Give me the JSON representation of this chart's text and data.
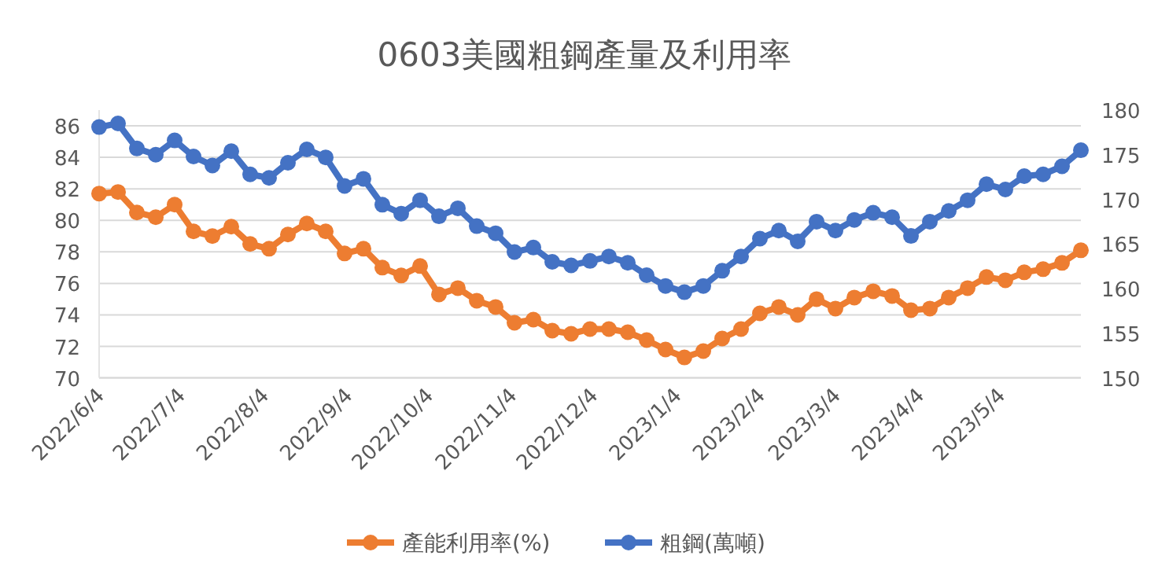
{
  "chart_data": {
    "type": "line",
    "title": "0603美國粗鋼產量及利用率",
    "x": [
      "2022-06-04",
      "2022-06-11",
      "2022-06-18",
      "2022-06-25",
      "2022-07-02",
      "2022-07-09",
      "2022-07-16",
      "2022-07-23",
      "2022-07-30",
      "2022-08-06",
      "2022-08-13",
      "2022-08-20",
      "2022-08-27",
      "2022-09-03",
      "2022-09-10",
      "2022-09-17",
      "2022-09-24",
      "2022-10-01",
      "2022-10-08",
      "2022-10-15",
      "2022-10-22",
      "2022-10-29",
      "2022-11-05",
      "2022-11-12",
      "2022-11-19",
      "2022-11-26",
      "2022-12-03",
      "2022-12-10",
      "2022-12-17",
      "2022-12-24",
      "2022-12-31",
      "2023-01-07",
      "2023-01-14",
      "2023-01-21",
      "2023-01-28",
      "2023-02-04",
      "2023-02-11",
      "2023-02-18",
      "2023-02-25",
      "2023-03-04",
      "2023-03-11",
      "2023-03-18",
      "2023-03-25",
      "2023-04-01",
      "2023-04-08",
      "2023-04-15",
      "2023-04-22",
      "2023-04-29",
      "2023-05-06",
      "2023-05-13",
      "2023-05-20",
      "2023-05-27",
      "2023-06-03"
    ],
    "series": [
      {
        "name": "產能利用率(%)",
        "color": "#ed7d31",
        "values": [
          81.7,
          81.8,
          80.5,
          80.2,
          81.0,
          79.3,
          79.0,
          79.6,
          78.5,
          78.2,
          79.1,
          79.8,
          79.3,
          77.9,
          78.2,
          77.0,
          76.5,
          77.1,
          75.3,
          75.7,
          74.9,
          74.5,
          73.5,
          73.7,
          73.0,
          72.8,
          73.1,
          73.1,
          72.9,
          72.4,
          71.8,
          71.3,
          71.7,
          72.5,
          73.1,
          74.1,
          74.5,
          74.0,
          75.0,
          74.4,
          75.1,
          75.5,
          75.2,
          74.3,
          74.4,
          75.1,
          75.7,
          76.4,
          76.2,
          76.7,
          76.9,
          77.3,
          78.1
        ]
      },
      {
        "name": "粗鋼(萬噸)",
        "color": "#4472c4",
        "axis": "y2",
        "values": [
          178.1,
          178.5,
          175.7,
          175.0,
          176.6,
          174.8,
          173.8,
          175.4,
          172.8,
          172.4,
          174.1,
          175.6,
          174.7,
          171.5,
          172.3,
          169.4,
          168.4,
          169.9,
          168.1,
          169.0,
          167.0,
          166.2,
          164.1,
          164.6,
          163.0,
          162.6,
          163.1,
          163.6,
          162.9,
          161.5,
          160.3,
          159.6,
          160.3,
          162.0,
          163.6,
          165.6,
          166.5,
          165.3,
          167.5,
          166.5,
          167.7,
          168.5,
          168.0,
          165.9,
          167.5,
          168.7,
          169.9,
          171.7,
          171.1,
          172.6,
          172.8,
          173.7,
          175.5
        ]
      }
    ],
    "xlim": [
      "2022-06-04",
      "2023-06-03"
    ],
    "xticks": [
      {
        "value": "2022-06-04",
        "label": "2022/6/4"
      },
      {
        "value": "2022-07-04",
        "label": "2022/7/4"
      },
      {
        "value": "2022-08-04",
        "label": "2022/8/4"
      },
      {
        "value": "2022-09-04",
        "label": "2022/9/4"
      },
      {
        "value": "2022-10-04",
        "label": "2022/10/4"
      },
      {
        "value": "2022-11-04",
        "label": "2022/11/4"
      },
      {
        "value": "2022-12-04",
        "label": "2022/12/4"
      },
      {
        "value": "2023-01-04",
        "label": "2023/1/4"
      },
      {
        "value": "2023-02-04",
        "label": "2023/2/4"
      },
      {
        "value": "2023-03-04",
        "label": "2023/3/4"
      },
      {
        "value": "2023-04-04",
        "label": "2023/4/4"
      },
      {
        "value": "2023-05-04",
        "label": "2023/5/4"
      }
    ],
    "ylim": [
      70,
      87
    ],
    "yticks": [
      70,
      72,
      74,
      76,
      78,
      80,
      82,
      84,
      86
    ],
    "y2lim": [
      150,
      180
    ],
    "y2ticks": [
      150,
      155,
      160,
      165,
      170,
      175,
      180
    ],
    "grid": "y",
    "legend": "bottom",
    "marker": "circle"
  }
}
